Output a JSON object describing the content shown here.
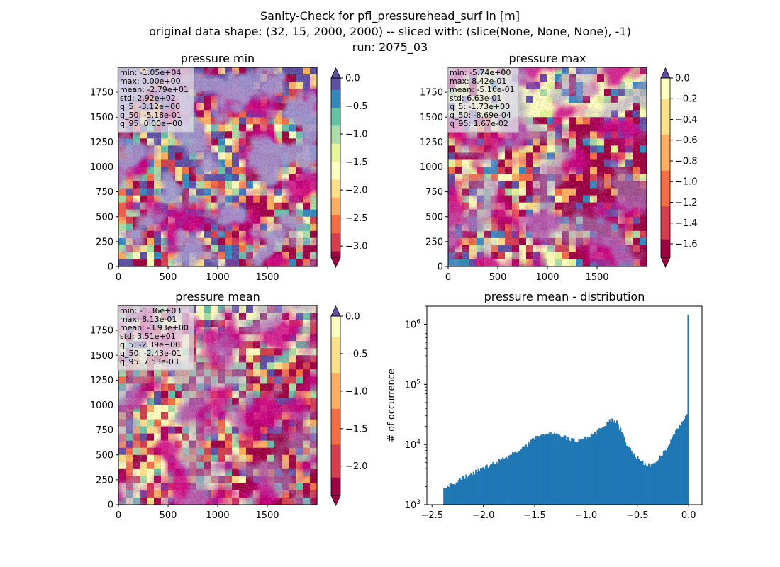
{
  "figure": {
    "title_lines": [
      "Sanity-Check for pfl_pressurehead_surf in [m]",
      "original data shape: (32, 15, 2000, 2000) -- sliced with: (slice(None, None, None), -1)",
      "run: 2075_03"
    ]
  },
  "colors": {
    "spectral": [
      "#9e0142",
      "#d53e4f",
      "#f46d43",
      "#fdae61",
      "#fee08b",
      "#ffffbf",
      "#e6f598",
      "#abdda4",
      "#66c2a5",
      "#3288bd",
      "#5e4fa2"
    ],
    "hist_bar": "#1f77b4",
    "stat_box_bg": "#e6e6ec"
  },
  "chart_data": [
    {
      "type": "heatmap",
      "title": "pressure min",
      "xticks": [
        "0",
        "500",
        "1000",
        "1500"
      ],
      "yticks": [
        "0",
        "250",
        "500",
        "750",
        "1000",
        "1250",
        "1500",
        "1750"
      ],
      "xlim": [
        0,
        2000
      ],
      "ylim": [
        0,
        2000
      ],
      "colormap": "Spectral",
      "colorbar": {
        "range": [
          -3.2,
          0.0
        ],
        "ticks": [
          "0.0",
          "-0.5",
          "-1.0",
          "-1.5",
          "-2.0",
          "-2.5",
          "-3.0"
        ],
        "extend": "both"
      },
      "stats": [
        "min: -1.05e+04",
        "max: 0.00e+00",
        "mean: -2.79e+01",
        "std: 2.92e+02",
        "q_5: -3.12e+00",
        "q_50: -5.18e-01",
        "q_95: 0.00e+00"
      ]
    },
    {
      "type": "heatmap",
      "title": "pressure max",
      "xticks": [
        "0",
        "500",
        "1000",
        "1500"
      ],
      "yticks": [
        "0",
        "250",
        "500",
        "750",
        "1000",
        "1250",
        "1500",
        "1750"
      ],
      "xlim": [
        0,
        2000
      ],
      "ylim": [
        0,
        2000
      ],
      "colormap": "Spectral",
      "colorbar": {
        "range": [
          -1.73,
          0.0
        ],
        "ticks": [
          "0.0",
          "-0.2",
          "-0.4",
          "-0.6",
          "-0.8",
          "-1.0",
          "-1.2",
          "-1.4",
          "-1.6"
        ],
        "extend": "both"
      },
      "stats": [
        "min: -5.74e+00",
        "max: 8.42e-01",
        "mean: -5.16e-01",
        "std: 6.63e-01",
        "q_5: -1.73e+00",
        "q_50: -8.69e-04",
        "q_95: 1.67e-02"
      ]
    },
    {
      "type": "heatmap",
      "title": "pressure mean",
      "xticks": [
        "0",
        "500",
        "1000",
        "1500"
      ],
      "yticks": [
        "0",
        "250",
        "500",
        "750",
        "1000",
        "1250",
        "1500",
        "1750"
      ],
      "xlim": [
        0,
        2000
      ],
      "ylim": [
        0,
        2000
      ],
      "colormap": "Spectral",
      "colorbar": {
        "range": [
          -2.39,
          0.0
        ],
        "ticks": [
          "0.0",
          "-0.5",
          "-1.0",
          "-1.5",
          "-2.0"
        ],
        "extend": "both"
      },
      "stats": [
        "min: -1.36e+03",
        "max: 8.13e-01",
        "mean: -3.93e+00",
        "std: 3.51e+01",
        "q_5: -2.39e+00",
        "q_50: -2.43e-01",
        "q_95: 7.53e-03"
      ]
    },
    {
      "type": "bar",
      "title": "pressure mean - distribution",
      "xlabel": "",
      "ylabel": "# of occurrence",
      "y_scale": "log",
      "xlim": [
        -2.55,
        0.13
      ],
      "ylim": [
        1000,
        2000000
      ],
      "xticks": [
        {
          "value": -2.5,
          "label": "−2.5"
        },
        {
          "value": -2.0,
          "label": "−2.0"
        },
        {
          "value": -1.5,
          "label": "−1.5"
        },
        {
          "value": -1.0,
          "label": "−1.0"
        },
        {
          "value": -0.5,
          "label": "−0.5"
        },
        {
          "value": 0.0,
          "label": "0.0"
        }
      ],
      "yticks": [
        {
          "value": 1000,
          "mantissa": "10",
          "exp": "3"
        },
        {
          "value": 10000,
          "mantissa": "10",
          "exp": "4"
        },
        {
          "value": 100000,
          "mantissa": "10",
          "exp": "5"
        },
        {
          "value": 1000000,
          "mantissa": "10",
          "exp": "6"
        }
      ],
      "bins": {
        "start": -2.39,
        "end": 0.0,
        "count": 200
      },
      "profile": [
        [
          -2.39,
          1900
        ],
        [
          -2.3,
          2200
        ],
        [
          -2.2,
          2800
        ],
        [
          -2.0,
          4000
        ],
        [
          -1.8,
          5800
        ],
        [
          -1.6,
          9000
        ],
        [
          -1.5,
          12500
        ],
        [
          -1.42,
          15500
        ],
        [
          -1.3,
          15500
        ],
        [
          -1.2,
          13000
        ],
        [
          -1.1,
          11500
        ],
        [
          -1.0,
          13000
        ],
        [
          -0.9,
          16000
        ],
        [
          -0.8,
          22500
        ],
        [
          -0.75,
          26000
        ],
        [
          -0.7,
          24000
        ],
        [
          -0.65,
          16000
        ],
        [
          -0.6,
          10000
        ],
        [
          -0.5,
          6000
        ],
        [
          -0.4,
          4500
        ],
        [
          -0.35,
          4500
        ],
        [
          -0.3,
          5500
        ],
        [
          -0.2,
          10000
        ],
        [
          -0.1,
          20000
        ],
        [
          -0.03,
          29000
        ],
        [
          -0.01,
          33000
        ],
        [
          0.0,
          1450000
        ]
      ]
    }
  ]
}
